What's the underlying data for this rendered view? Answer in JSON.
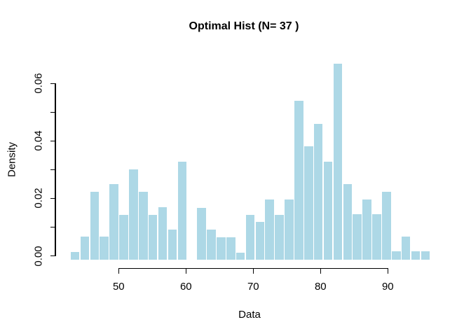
{
  "chart_data": {
    "type": "bar",
    "subtype": "histogram",
    "title": "Optimal Hist (N= 37 )",
    "xlabel": "Data",
    "ylabel": "Density",
    "n_bins": 37,
    "bin_start": 42.8,
    "bin_width": 1.446,
    "densities": [
      0.0013,
      0.0066,
      0.0224,
      0.0066,
      0.0251,
      0.0143,
      0.0302,
      0.0224,
      0.0143,
      0.017,
      0.0092,
      0.0329,
      0,
      0.0168,
      0.0091,
      0.0065,
      0.0065,
      0.0011,
      0.0143,
      0.0118,
      0.0196,
      0.0143,
      0.0196,
      0.0539,
      0.0381,
      0.0459,
      0.0329,
      0.067,
      0.0251,
      0.0145,
      0.0196,
      0.0145,
      0.0224,
      0.0016,
      0.0066,
      0.0016,
      0.0016
    ],
    "x_ticks": [
      {
        "value": 50,
        "label": "50"
      },
      {
        "value": 60,
        "label": "60"
      },
      {
        "value": 70,
        "label": "70"
      },
      {
        "value": 80,
        "label": "80"
      },
      {
        "value": 90,
        "label": "90"
      }
    ],
    "y_ticks": [
      {
        "value": 0.0,
        "label": "0.00"
      },
      {
        "value": 0.01,
        "label": ""
      },
      {
        "value": 0.02,
        "label": "0.02"
      },
      {
        "value": 0.03,
        "label": ""
      },
      {
        "value": 0.04,
        "label": "0.04"
      },
      {
        "value": 0.05,
        "label": ""
      },
      {
        "value": 0.06,
        "label": "0.06"
      }
    ],
    "xlim": [
      42.8,
      96.3
    ],
    "ylim": [
      0,
      0.067
    ],
    "grid": false,
    "legend": false,
    "colors": {
      "bar_fill": "#ADD8E6",
      "bar_gap": "#FFFFFF",
      "axis": "#000000",
      "text": "#000000",
      "background": "#FFFFFF"
    }
  }
}
